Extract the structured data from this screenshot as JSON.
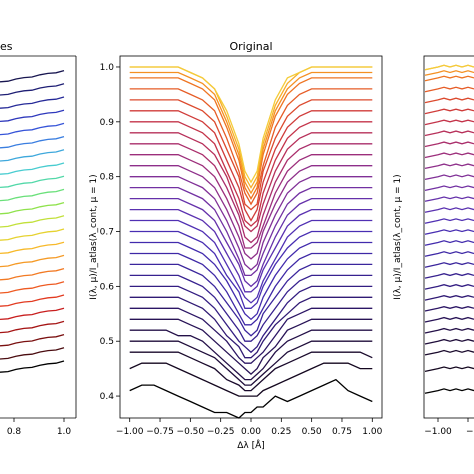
{
  "left_panel": {
    "title_fragment": "es",
    "xtick_labels": [
      "0.8",
      "1.0"
    ],
    "line_colors": [
      "#000000",
      "#4a0c10",
      "#7a1010",
      "#a51414",
      "#c81e1e",
      "#e23a20",
      "#ee5a22",
      "#f27a24",
      "#f59a26",
      "#f7b92a",
      "#e6d230",
      "#c2e03a",
      "#8fe24c",
      "#6ae07a",
      "#52d8a8",
      "#48ccd0",
      "#3ea8dc",
      "#3a7ee0",
      "#3654d8",
      "#2e38bc",
      "#262a98",
      "#1e1e74",
      "#181650"
    ]
  },
  "right_panel": {
    "ylabel": "I(λ, μ)/I_atlas(λ_cont, μ = 1)",
    "xtick_labels": [
      "−1.00",
      "−0."
    ]
  },
  "chart_data": {
    "type": "line",
    "title": "Original",
    "xlabel": "Δλ [Å]",
    "ylabel": "I(λ, μ)/I_atlas(λ_cont, μ = 1)",
    "xlim": [
      -1.08,
      1.08
    ],
    "ylim": [
      0.36,
      1.02
    ],
    "xticks": [
      -1.0,
      -0.75,
      -0.5,
      -0.25,
      0.0,
      0.25,
      0.5,
      0.75,
      1.0
    ],
    "xtick_labels": [
      "−1.00",
      "−0.75",
      "−0.50",
      "−0.25",
      "0.00",
      "0.25",
      "0.50",
      "0.75",
      "1.00"
    ],
    "yticks": [
      0.4,
      0.5,
      0.6,
      0.7,
      0.8,
      0.9,
      1.0
    ],
    "ytick_labels": [
      "0.4",
      "0.5",
      "0.6",
      "0.7",
      "0.8",
      "0.9",
      "1.0"
    ],
    "grid": false,
    "legend": "none",
    "x": [
      -1.0,
      -0.9,
      -0.8,
      -0.7,
      -0.6,
      -0.5,
      -0.4,
      -0.3,
      -0.2,
      -0.1,
      -0.05,
      0.0,
      0.05,
      0.1,
      0.2,
      0.3,
      0.4,
      0.5,
      0.6,
      0.7,
      0.8,
      0.9,
      1.0
    ],
    "series": [
      {
        "color": "#000000",
        "values": [
          0.41,
          0.42,
          0.42,
          0.41,
          0.4,
          0.39,
          0.38,
          0.37,
          0.37,
          0.36,
          0.37,
          0.37,
          0.38,
          0.38,
          0.4,
          0.39,
          0.4,
          0.41,
          0.42,
          0.43,
          0.41,
          0.4,
          0.39
        ]
      },
      {
        "color": "#14071f",
        "values": [
          0.45,
          0.46,
          0.46,
          0.46,
          0.45,
          0.44,
          0.43,
          0.42,
          0.41,
          0.4,
          0.4,
          0.4,
          0.4,
          0.41,
          0.42,
          0.43,
          0.44,
          0.45,
          0.46,
          0.46,
          0.46,
          0.45,
          0.45
        ]
      },
      {
        "color": "#1a0a2c",
        "values": [
          0.48,
          0.48,
          0.48,
          0.48,
          0.48,
          0.47,
          0.46,
          0.45,
          0.43,
          0.42,
          0.41,
          0.41,
          0.42,
          0.43,
          0.45,
          0.46,
          0.47,
          0.48,
          0.48,
          0.48,
          0.48,
          0.48,
          0.47
        ]
      },
      {
        "color": "#1f0d3a",
        "values": [
          0.5,
          0.5,
          0.5,
          0.5,
          0.5,
          0.49,
          0.48,
          0.47,
          0.45,
          0.43,
          0.42,
          0.42,
          0.43,
          0.44,
          0.46,
          0.48,
          0.49,
          0.5,
          0.5,
          0.5,
          0.5,
          0.5,
          0.5
        ]
      },
      {
        "color": "#241048",
        "values": [
          0.52,
          0.52,
          0.52,
          0.52,
          0.51,
          0.51,
          0.5,
          0.48,
          0.46,
          0.44,
          0.43,
          0.43,
          0.44,
          0.45,
          0.48,
          0.5,
          0.51,
          0.52,
          0.52,
          0.52,
          0.52,
          0.52,
          0.52
        ]
      },
      {
        "color": "#281356",
        "values": [
          0.54,
          0.54,
          0.54,
          0.54,
          0.54,
          0.53,
          0.52,
          0.5,
          0.48,
          0.46,
          0.45,
          0.44,
          0.45,
          0.47,
          0.49,
          0.52,
          0.53,
          0.54,
          0.54,
          0.54,
          0.54,
          0.54,
          0.54
        ]
      },
      {
        "color": "#2c1665",
        "values": [
          0.56,
          0.56,
          0.56,
          0.56,
          0.56,
          0.55,
          0.54,
          0.52,
          0.5,
          0.47,
          0.46,
          0.46,
          0.47,
          0.48,
          0.51,
          0.54,
          0.55,
          0.56,
          0.56,
          0.56,
          0.56,
          0.56,
          0.56
        ]
      },
      {
        "color": "#301a74",
        "values": [
          0.58,
          0.58,
          0.58,
          0.58,
          0.58,
          0.57,
          0.56,
          0.54,
          0.51,
          0.49,
          0.47,
          0.47,
          0.48,
          0.5,
          0.53,
          0.55,
          0.57,
          0.58,
          0.58,
          0.58,
          0.58,
          0.58,
          0.58
        ]
      },
      {
        "color": "#331d82",
        "values": [
          0.6,
          0.6,
          0.6,
          0.6,
          0.6,
          0.59,
          0.58,
          0.56,
          0.53,
          0.5,
          0.49,
          0.48,
          0.49,
          0.51,
          0.54,
          0.57,
          0.59,
          0.6,
          0.6,
          0.6,
          0.6,
          0.6,
          0.6
        ]
      },
      {
        "color": "#37218f",
        "values": [
          0.62,
          0.62,
          0.62,
          0.62,
          0.62,
          0.61,
          0.6,
          0.58,
          0.55,
          0.52,
          0.5,
          0.5,
          0.51,
          0.53,
          0.56,
          0.59,
          0.61,
          0.62,
          0.62,
          0.62,
          0.62,
          0.62,
          0.62
        ]
      },
      {
        "color": "#3a259c",
        "values": [
          0.64,
          0.64,
          0.64,
          0.64,
          0.64,
          0.63,
          0.62,
          0.6,
          0.57,
          0.54,
          0.52,
          0.51,
          0.52,
          0.55,
          0.58,
          0.61,
          0.63,
          0.64,
          0.64,
          0.64,
          0.64,
          0.64,
          0.64
        ]
      },
      {
        "color": "#3e28a6",
        "values": [
          0.66,
          0.66,
          0.66,
          0.66,
          0.66,
          0.65,
          0.64,
          0.62,
          0.59,
          0.55,
          0.53,
          0.53,
          0.54,
          0.56,
          0.6,
          0.63,
          0.65,
          0.66,
          0.66,
          0.66,
          0.66,
          0.66,
          0.66
        ]
      },
      {
        "color": "#422bad",
        "values": [
          0.68,
          0.68,
          0.68,
          0.68,
          0.68,
          0.67,
          0.66,
          0.64,
          0.61,
          0.57,
          0.55,
          0.54,
          0.55,
          0.58,
          0.62,
          0.65,
          0.67,
          0.68,
          0.68,
          0.68,
          0.68,
          0.68,
          0.68
        ]
      },
      {
        "color": "#482eb2",
        "values": [
          0.7,
          0.7,
          0.7,
          0.7,
          0.7,
          0.69,
          0.68,
          0.66,
          0.62,
          0.59,
          0.56,
          0.56,
          0.57,
          0.6,
          0.64,
          0.67,
          0.69,
          0.7,
          0.7,
          0.7,
          0.7,
          0.7,
          0.7
        ]
      },
      {
        "color": "#5030b3",
        "values": [
          0.72,
          0.72,
          0.72,
          0.72,
          0.72,
          0.71,
          0.7,
          0.68,
          0.64,
          0.6,
          0.58,
          0.57,
          0.58,
          0.61,
          0.65,
          0.69,
          0.71,
          0.72,
          0.72,
          0.72,
          0.72,
          0.72,
          0.72
        ]
      },
      {
        "color": "#5a31b0",
        "values": [
          0.74,
          0.74,
          0.74,
          0.74,
          0.74,
          0.73,
          0.72,
          0.7,
          0.66,
          0.62,
          0.59,
          0.59,
          0.6,
          0.63,
          0.67,
          0.71,
          0.73,
          0.74,
          0.74,
          0.74,
          0.74,
          0.74,
          0.74
        ]
      },
      {
        "color": "#6531aa",
        "values": [
          0.76,
          0.76,
          0.76,
          0.76,
          0.76,
          0.75,
          0.74,
          0.72,
          0.68,
          0.64,
          0.61,
          0.6,
          0.61,
          0.64,
          0.69,
          0.73,
          0.75,
          0.76,
          0.76,
          0.76,
          0.76,
          0.76,
          0.76
        ]
      },
      {
        "color": "#7231a2",
        "values": [
          0.78,
          0.78,
          0.78,
          0.78,
          0.78,
          0.77,
          0.76,
          0.74,
          0.7,
          0.65,
          0.62,
          0.62,
          0.63,
          0.66,
          0.71,
          0.75,
          0.77,
          0.78,
          0.78,
          0.78,
          0.78,
          0.78,
          0.78
        ]
      },
      {
        "color": "#803097",
        "values": [
          0.8,
          0.8,
          0.8,
          0.8,
          0.8,
          0.79,
          0.78,
          0.76,
          0.72,
          0.67,
          0.64,
          0.63,
          0.64,
          0.68,
          0.73,
          0.77,
          0.79,
          0.8,
          0.8,
          0.8,
          0.8,
          0.8,
          0.8
        ]
      },
      {
        "color": "#8e2f8a",
        "values": [
          0.82,
          0.82,
          0.82,
          0.82,
          0.82,
          0.81,
          0.8,
          0.78,
          0.74,
          0.69,
          0.66,
          0.65,
          0.66,
          0.7,
          0.75,
          0.79,
          0.81,
          0.82,
          0.82,
          0.82,
          0.82,
          0.82,
          0.82
        ]
      },
      {
        "color": "#9c2e7b",
        "values": [
          0.84,
          0.84,
          0.84,
          0.84,
          0.84,
          0.83,
          0.82,
          0.8,
          0.76,
          0.71,
          0.67,
          0.67,
          0.68,
          0.71,
          0.77,
          0.81,
          0.83,
          0.84,
          0.84,
          0.84,
          0.84,
          0.84,
          0.84
        ]
      },
      {
        "color": "#aa2e6b",
        "values": [
          0.86,
          0.86,
          0.86,
          0.86,
          0.86,
          0.85,
          0.84,
          0.82,
          0.78,
          0.73,
          0.69,
          0.68,
          0.69,
          0.73,
          0.79,
          0.83,
          0.85,
          0.86,
          0.86,
          0.86,
          0.86,
          0.86,
          0.86
        ]
      },
      {
        "color": "#b7305a",
        "values": [
          0.88,
          0.88,
          0.88,
          0.88,
          0.88,
          0.87,
          0.86,
          0.84,
          0.8,
          0.74,
          0.71,
          0.7,
          0.71,
          0.75,
          0.81,
          0.85,
          0.87,
          0.88,
          0.88,
          0.88,
          0.88,
          0.88,
          0.88
        ]
      },
      {
        "color": "#c4344a",
        "values": [
          0.9,
          0.9,
          0.9,
          0.9,
          0.9,
          0.89,
          0.88,
          0.86,
          0.81,
          0.76,
          0.72,
          0.71,
          0.72,
          0.77,
          0.83,
          0.87,
          0.89,
          0.9,
          0.9,
          0.9,
          0.9,
          0.9,
          0.9
        ]
      },
      {
        "color": "#d03c3a",
        "values": [
          0.92,
          0.92,
          0.92,
          0.92,
          0.92,
          0.91,
          0.9,
          0.88,
          0.83,
          0.78,
          0.74,
          0.72,
          0.74,
          0.79,
          0.85,
          0.89,
          0.91,
          0.92,
          0.92,
          0.92,
          0.92,
          0.92,
          0.92
        ]
      },
      {
        "color": "#dc4a2e",
        "values": [
          0.94,
          0.94,
          0.94,
          0.94,
          0.94,
          0.93,
          0.92,
          0.9,
          0.85,
          0.8,
          0.75,
          0.74,
          0.75,
          0.81,
          0.87,
          0.91,
          0.93,
          0.94,
          0.94,
          0.94,
          0.94,
          0.94,
          0.94
        ]
      },
      {
        "color": "#e65c26",
        "values": [
          0.96,
          0.96,
          0.96,
          0.96,
          0.96,
          0.95,
          0.94,
          0.92,
          0.87,
          0.81,
          0.77,
          0.75,
          0.77,
          0.82,
          0.89,
          0.93,
          0.95,
          0.96,
          0.96,
          0.96,
          0.96,
          0.96,
          0.96
        ]
      },
      {
        "color": "#ee7422",
        "values": [
          0.98,
          0.98,
          0.98,
          0.98,
          0.98,
          0.97,
          0.96,
          0.94,
          0.89,
          0.83,
          0.78,
          0.76,
          0.78,
          0.84,
          0.91,
          0.95,
          0.97,
          0.98,
          0.98,
          0.98,
          0.98,
          0.98,
          0.98
        ]
      },
      {
        "color": "#f49022",
        "values": [
          0.99,
          0.99,
          0.99,
          0.99,
          0.99,
          0.98,
          0.97,
          0.95,
          0.9,
          0.84,
          0.79,
          0.77,
          0.79,
          0.85,
          0.92,
          0.96,
          0.98,
          0.99,
          0.99,
          0.99,
          0.99,
          0.99,
          0.99
        ]
      },
      {
        "color": "#f7ae2a",
        "values": [
          1.0,
          1.0,
          1.0,
          1.0,
          1.0,
          0.99,
          0.98,
          0.96,
          0.91,
          0.85,
          0.8,
          0.78,
          0.8,
          0.86,
          0.93,
          0.97,
          0.99,
          1.0,
          1.0,
          1.0,
          1.0,
          1.0,
          1.0
        ]
      },
      {
        "color": "#f4cc3a",
        "values": [
          1.0,
          1.0,
          1.0,
          1.0,
          1.0,
          0.99,
          0.98,
          0.96,
          0.92,
          0.86,
          0.81,
          0.79,
          0.81,
          0.87,
          0.94,
          0.98,
          0.99,
          1.0,
          1.0,
          1.0,
          1.0,
          1.0,
          1.0
        ]
      }
    ]
  }
}
